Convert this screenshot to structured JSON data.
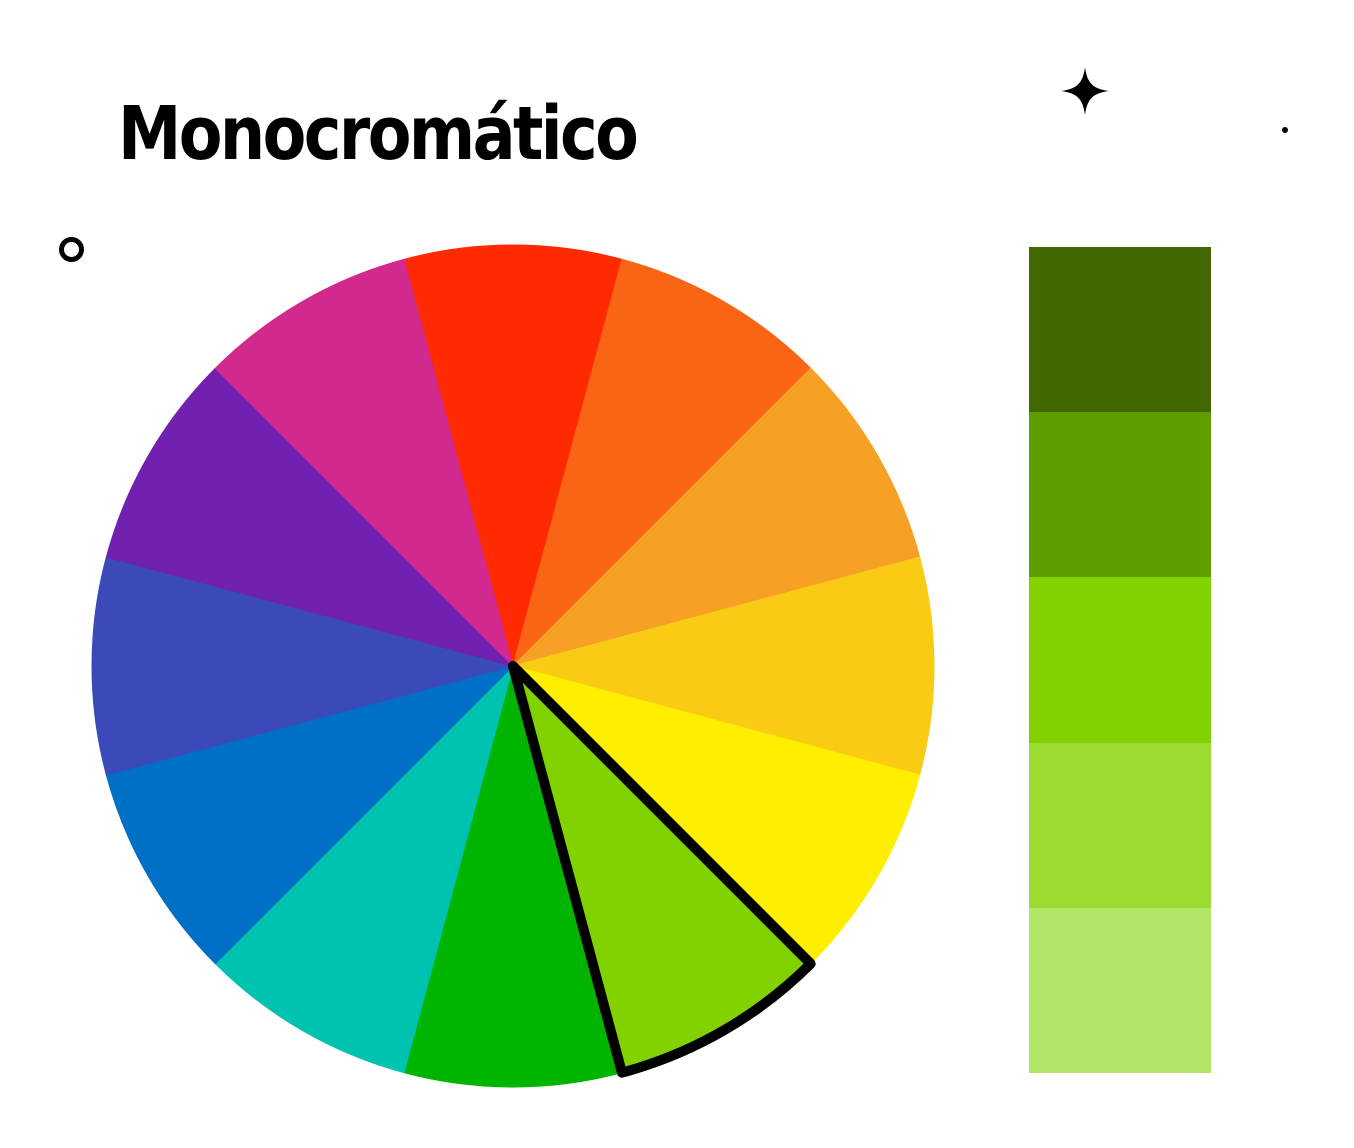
{
  "title": "Monocromático",
  "wheel": {
    "segments": [
      {
        "name": "red",
        "color": "#FF2A00"
      },
      {
        "name": "red-orange",
        "color": "#FA6415"
      },
      {
        "name": "orange",
        "color": "#F6A026"
      },
      {
        "name": "yellow-orange",
        "color": "#FACB15"
      },
      {
        "name": "yellow",
        "color": "#FFEE00"
      },
      {
        "name": "yellow-green",
        "color": "#82D200"
      },
      {
        "name": "green",
        "color": "#00B400"
      },
      {
        "name": "teal",
        "color": "#00C2B0"
      },
      {
        "name": "blue",
        "color": "#0070C6"
      },
      {
        "name": "blue-violet",
        "color": "#3A4AB8"
      },
      {
        "name": "violet",
        "color": "#7220B0"
      },
      {
        "name": "magenta",
        "color": "#D2298E"
      }
    ],
    "highlighted_segment": "yellow-green",
    "highlight_color": "#000000"
  },
  "palette": {
    "swatches": [
      {
        "name": "dark-green",
        "color": "#436800"
      },
      {
        "name": "medium-dark-green",
        "color": "#5F9E00"
      },
      {
        "name": "base-green",
        "color": "#82D200"
      },
      {
        "name": "light-green",
        "color": "#9BDB31"
      },
      {
        "name": "lightest-green",
        "color": "#B2E567"
      }
    ]
  },
  "decorations": {
    "color": "#000000",
    "icons": [
      "sparkle-icon",
      "dot-icon",
      "ring-icon"
    ]
  }
}
